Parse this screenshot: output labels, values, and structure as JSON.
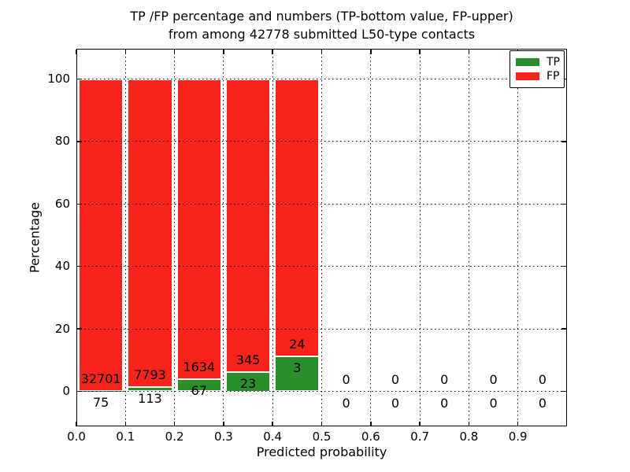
{
  "chart_data": {
    "type": "bar",
    "stacked": true,
    "normalized_to_percent": true,
    "title_line1": "TP /FP percentage and numbers (TP-bottom value, FP-upper)",
    "title_line2": "from among 42778 submitted L50-type contacts",
    "xlabel": "Predicted probability",
    "ylabel": "Percentage",
    "total_contacts": 42778,
    "xlim": [
      0.0,
      1.0
    ],
    "ylim_percent": [
      0,
      100
    ],
    "grid": "dotted",
    "x_tick_labels": [
      "0.0",
      "0.1",
      "0.2",
      "0.3",
      "0.4",
      "0.5",
      "0.6",
      "0.7",
      "0.8",
      "0.9"
    ],
    "y_ticks": [
      0,
      20,
      40,
      60,
      80,
      100
    ],
    "y_tick_labels": [
      "0",
      "20",
      "40",
      "60",
      "80",
      "100"
    ],
    "legend": {
      "position": "upper right",
      "items": [
        {
          "id": "tp",
          "label": "TP",
          "color": "#2a8f2a"
        },
        {
          "id": "fp",
          "label": "FP",
          "color": "#f8231a"
        }
      ]
    },
    "colors": {
      "tp": "#2a8f2a",
      "fp": "#f8231a",
      "grid": "#000000",
      "background": "#ffffff",
      "text": "#000000"
    },
    "bins": [
      {
        "x_start": 0.0,
        "x_end": 0.1,
        "tp_count": 75,
        "fp_count": 32701,
        "tp_percent": 0.23
      },
      {
        "x_start": 0.1,
        "x_end": 0.2,
        "tp_count": 113,
        "fp_count": 7793,
        "tp_percent": 1.43
      },
      {
        "x_start": 0.2,
        "x_end": 0.3,
        "tp_count": 67,
        "fp_count": 1634,
        "tp_percent": 3.94
      },
      {
        "x_start": 0.3,
        "x_end": 0.4,
        "tp_count": 23,
        "fp_count": 345,
        "tp_percent": 6.25
      },
      {
        "x_start": 0.4,
        "x_end": 0.5,
        "tp_count": 3,
        "fp_count": 24,
        "tp_percent": 11.11
      },
      {
        "x_start": 0.5,
        "x_end": 0.6,
        "tp_count": 0,
        "fp_count": 0,
        "tp_percent": 0
      },
      {
        "x_start": 0.6,
        "x_end": 0.7,
        "tp_count": 0,
        "fp_count": 0,
        "tp_percent": 0
      },
      {
        "x_start": 0.7,
        "x_end": 0.8,
        "tp_count": 0,
        "fp_count": 0,
        "tp_percent": 0
      },
      {
        "x_start": 0.8,
        "x_end": 0.9,
        "tp_count": 0,
        "fp_count": 0,
        "tp_percent": 0
      },
      {
        "x_start": 0.9,
        "x_end": 1.0,
        "tp_count": 0,
        "fp_count": 0,
        "tp_percent": 0
      }
    ]
  }
}
